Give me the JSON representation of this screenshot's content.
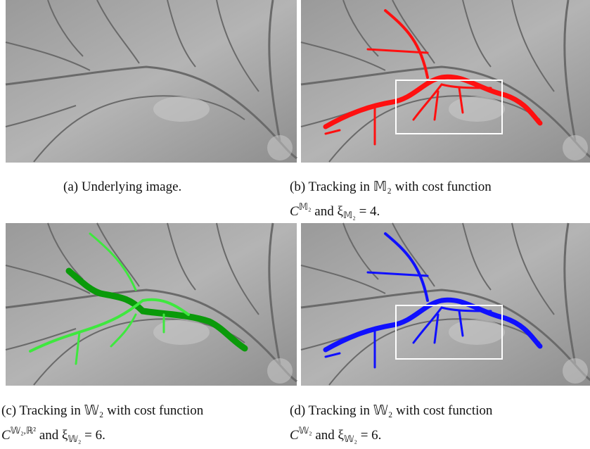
{
  "panels": [
    {
      "caption": [
        "(a) Underlying image."
      ]
    },
    {
      "caption": [
        "(b) Tracking in 𝕄₂ with cost function",
        "C",
        "𝕄₂",
        "and ξ",
        "𝕄₂",
        "= 4."
      ]
    },
    {
      "caption": [
        "(c) Tracking in 𝕎₂ with cost function",
        "C",
        "𝕎₂,ℝ²",
        "and ξ",
        "𝕎₂",
        "= 6."
      ]
    },
    {
      "caption": [
        "(d) Tracking in 𝕎₂ with cost function",
        "C",
        "𝕎₂",
        "and ξ",
        "𝕎₂",
        "= 6."
      ]
    }
  ]
}
